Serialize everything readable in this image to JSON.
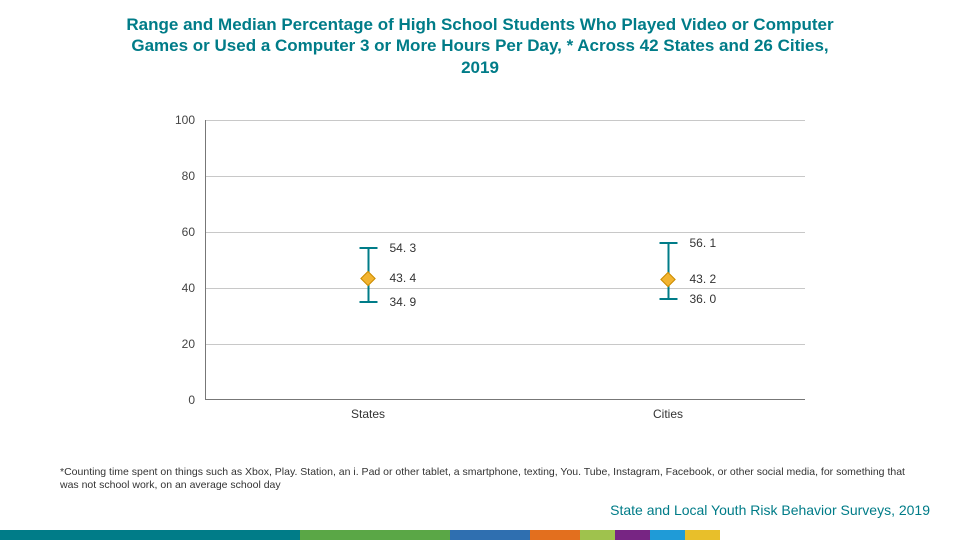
{
  "title": "Range and Median Percentage of High School Students Who Played Video or Computer Games or Used a Computer 3 or More Hours Per Day, * Across 42 States and 26 Cities, 2019",
  "chart": {
    "type": "range-median",
    "ylim": [
      0,
      100
    ],
    "ytick_step": 20,
    "yticks": [
      0,
      20,
      40,
      60,
      80,
      100
    ],
    "grid_color": "#c8c8c8",
    "axis_color": "#777777",
    "whisker_color": "#007c88",
    "marker_fill": "#f2b430",
    "marker_border": "#c98a00",
    "label_fontsize": 12,
    "categories": [
      {
        "name": "States",
        "high": 54.3,
        "median": 43.4,
        "low": 34.9
      },
      {
        "name": "Cities",
        "high": 56.1,
        "median": 43.2,
        "low": 36.0
      }
    ],
    "high_labels": [
      "54. 3",
      "56. 1"
    ],
    "median_labels": [
      "43. 4",
      "43. 2"
    ],
    "low_labels": [
      "34. 9",
      "36. 0"
    ]
  },
  "footnote": "*Counting time spent on things such as Xbox, Play. Station, an i. Pad or other tablet, a smartphone, texting, You. Tube, Instagram, Facebook, or other social media, for something that was not school work, on an average school day",
  "source": "State and Local Youth Risk Behavior Surveys, 2019",
  "footer_colors": [
    "#007c88",
    "#5aa746",
    "#2f6fb0",
    "#e36f1e",
    "#9fc24d",
    "#772583",
    "#1f9bd7",
    "#e8bf2a"
  ],
  "footer_widths": [
    300,
    150,
    80,
    50,
    35,
    35,
    35,
    35
  ]
}
